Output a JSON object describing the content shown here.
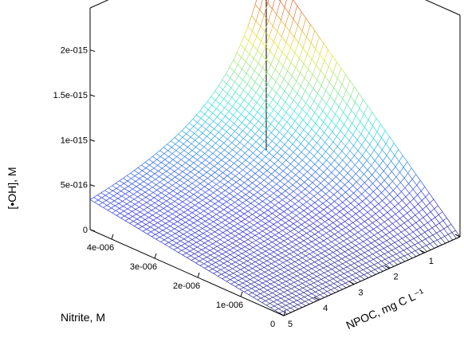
{
  "chart_data": {
    "type": "surface",
    "zlabel": "[•OH], M",
    "xlabel": "Nitrite, M",
    "ylabel": "NPOC, mg C L⁻¹",
    "x_ticks": [
      "0",
      "1e-006",
      "2e-006",
      "3e-006",
      "4e-006"
    ],
    "y_ticks": [
      "0",
      "1",
      "2",
      "3",
      "4",
      "5"
    ],
    "z_ticks": [
      "0",
      "5e-016",
      "1e-015",
      "1.5e-015",
      "2e-015"
    ],
    "x_range": [
      0,
      4.5e-06
    ],
    "y_range": [
      0,
      5
    ],
    "z_range": [
      0,
      2.2e-15
    ],
    "colormap": "jet",
    "grid": false,
    "surface_samples": [
      {
        "nitrite": 4.5e-06,
        "npoc": 0,
        "oh": 2.1e-15
      },
      {
        "nitrite": 4.5e-06,
        "npoc": 5,
        "oh": 3e-17
      },
      {
        "nitrite": 0,
        "npoc": 0,
        "oh": 1e-17
      },
      {
        "nitrite": 0,
        "npoc": 5,
        "oh": 0
      }
    ]
  }
}
